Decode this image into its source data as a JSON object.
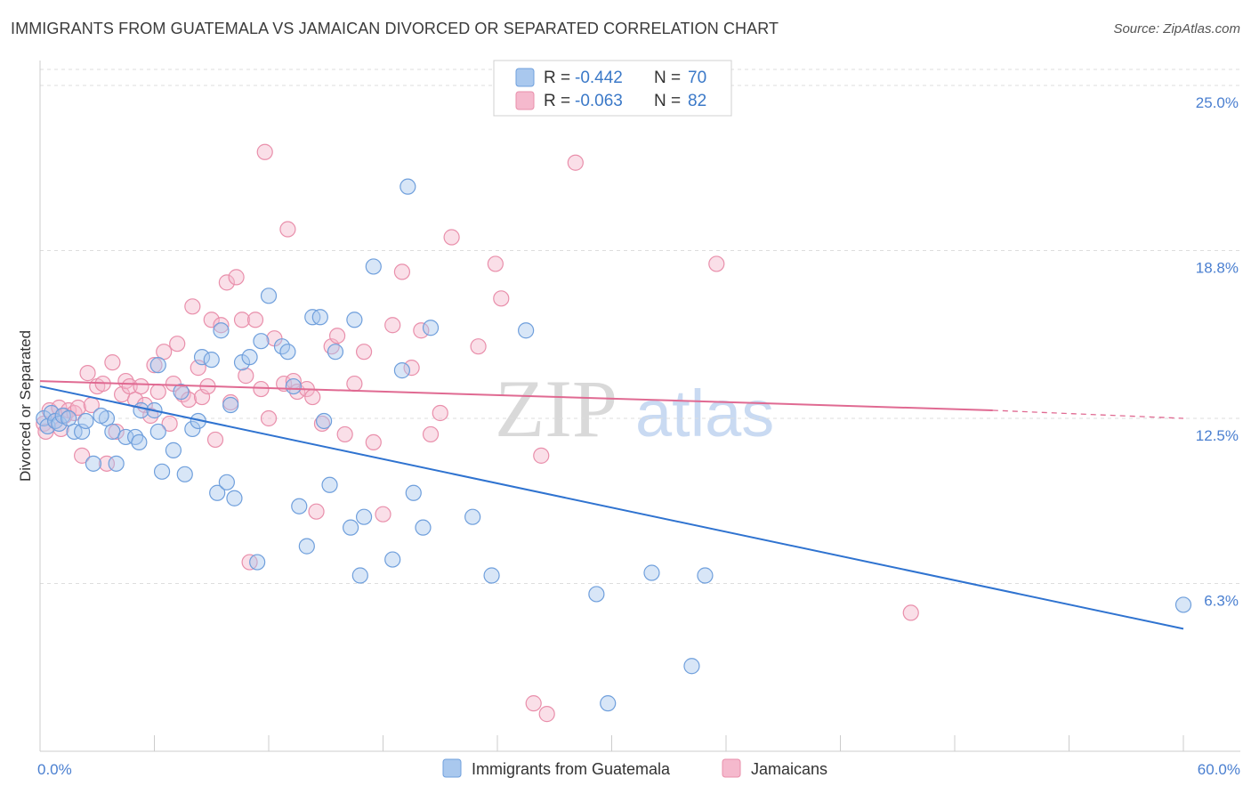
{
  "header": {
    "title": "IMMIGRANTS FROM GUATEMALA VS JAMAICAN DIVORCED OR SEPARATED CORRELATION CHART",
    "source": "Source: ZipAtlas.com"
  },
  "watermark": {
    "zip": "ZIP",
    "atlas": "atlas"
  },
  "stats_legend": {
    "rows": [
      {
        "r_label": "R =",
        "r_value": "-0.442",
        "n_label": "N =",
        "n_value": "70"
      },
      {
        "r_label": "R =",
        "r_value": "-0.063",
        "n_label": "N =",
        "n_value": "82"
      }
    ]
  },
  "chart_data": {
    "type": "scatter",
    "ylabel": "Divorced or Separated",
    "xlabel": "",
    "x_tick_labels": [
      "0.0%",
      "60.0%"
    ],
    "y_tick_labels": [
      "25.0%",
      "18.8%",
      "12.5%",
      "6.3%"
    ],
    "y_tick_values": [
      25.0,
      18.8,
      12.5,
      6.3
    ],
    "xlim": [
      0,
      60
    ],
    "ylim": [
      0,
      25.6
    ],
    "grid": "horizontal dashed",
    "legend_placement": "bottom-center",
    "colors": {
      "blue_fill": "#a9c8ee",
      "blue_stroke": "#6f9fdc",
      "blue_line": "#2f73d0",
      "pink_fill": "#f5b9cd",
      "pink_stroke": "#e98fab",
      "pink_line": "#e06a92"
    },
    "series": [
      {
        "name": "Immigrants from Guatemala",
        "color": "#a9c8ee",
        "trend": {
          "x": [
            0,
            60
          ],
          "y": [
            13.7,
            4.6
          ]
        },
        "points": [
          [
            0.2,
            12.5
          ],
          [
            0.4,
            12.2
          ],
          [
            0.6,
            12.7
          ],
          [
            0.8,
            12.4
          ],
          [
            1.0,
            12.3
          ],
          [
            1.2,
            12.6
          ],
          [
            1.5,
            12.5
          ],
          [
            1.8,
            12.0
          ],
          [
            2.2,
            12.0
          ],
          [
            2.4,
            12.4
          ],
          [
            2.8,
            10.8
          ],
          [
            3.5,
            12.5
          ],
          [
            3.8,
            12.0
          ],
          [
            4.0,
            10.8
          ],
          [
            4.5,
            11.8
          ],
          [
            5.0,
            11.8
          ],
          [
            5.2,
            11.6
          ],
          [
            5.3,
            12.8
          ],
          [
            6.0,
            12.8
          ],
          [
            6.2,
            14.5
          ],
          [
            6.2,
            12.0
          ],
          [
            6.4,
            10.5
          ],
          [
            7.0,
            11.3
          ],
          [
            7.4,
            13.5
          ],
          [
            7.6,
            10.4
          ],
          [
            8.0,
            12.1
          ],
          [
            8.3,
            12.4
          ],
          [
            8.5,
            14.8
          ],
          [
            9.0,
            14.7
          ],
          [
            9.3,
            9.7
          ],
          [
            9.5,
            15.8
          ],
          [
            9.8,
            10.1
          ],
          [
            10.0,
            13.0
          ],
          [
            10.2,
            9.5
          ],
          [
            10.6,
            14.6
          ],
          [
            11.0,
            14.8
          ],
          [
            11.4,
            7.1
          ],
          [
            11.6,
            15.4
          ],
          [
            12.0,
            17.1
          ],
          [
            12.7,
            15.2
          ],
          [
            13.0,
            15.0
          ],
          [
            13.3,
            13.7
          ],
          [
            13.6,
            9.2
          ],
          [
            14.0,
            7.7
          ],
          [
            14.3,
            16.3
          ],
          [
            14.7,
            16.3
          ],
          [
            14.9,
            12.4
          ],
          [
            15.2,
            10.0
          ],
          [
            15.5,
            15.0
          ],
          [
            16.3,
            8.4
          ],
          [
            16.5,
            16.2
          ],
          [
            16.8,
            6.6
          ],
          [
            17.0,
            8.8
          ],
          [
            17.5,
            18.2
          ],
          [
            18.5,
            7.2
          ],
          [
            19.0,
            14.3
          ],
          [
            19.3,
            21.2
          ],
          [
            19.6,
            9.7
          ],
          [
            20.1,
            8.4
          ],
          [
            20.5,
            15.9
          ],
          [
            22.7,
            8.8
          ],
          [
            23.7,
            6.6
          ],
          [
            25.5,
            15.8
          ],
          [
            29.2,
            5.9
          ],
          [
            29.8,
            1.8
          ],
          [
            32.1,
            6.7
          ],
          [
            34.2,
            3.2
          ],
          [
            34.9,
            6.6
          ],
          [
            60.0,
            5.5
          ],
          [
            3.2,
            12.6
          ]
        ]
      },
      {
        "name": "Jamaicans",
        "color": "#f5b9cd",
        "trend": {
          "x": [
            0,
            50
          ],
          "y": [
            13.9,
            12.8
          ]
        },
        "trend_dashed": {
          "x": [
            50,
            60
          ],
          "y": [
            12.8,
            12.5
          ]
        },
        "points": [
          [
            0.2,
            12.3
          ],
          [
            0.5,
            12.8
          ],
          [
            0.8,
            12.4
          ],
          [
            1.0,
            12.9
          ],
          [
            1.3,
            12.6
          ],
          [
            1.5,
            12.8
          ],
          [
            1.8,
            12.7
          ],
          [
            2.0,
            12.9
          ],
          [
            2.2,
            11.1
          ],
          [
            2.5,
            14.2
          ],
          [
            2.7,
            13.0
          ],
          [
            3.0,
            13.7
          ],
          [
            3.3,
            13.8
          ],
          [
            3.5,
            10.8
          ],
          [
            3.8,
            14.6
          ],
          [
            4.0,
            12.0
          ],
          [
            4.3,
            13.4
          ],
          [
            4.5,
            13.9
          ],
          [
            4.7,
            13.7
          ],
          [
            5.0,
            13.2
          ],
          [
            5.3,
            13.7
          ],
          [
            5.5,
            13.0
          ],
          [
            5.8,
            12.6
          ],
          [
            6.0,
            14.5
          ],
          [
            6.2,
            13.5
          ],
          [
            6.5,
            15.0
          ],
          [
            6.8,
            12.3
          ],
          [
            7.0,
            13.8
          ],
          [
            7.2,
            15.3
          ],
          [
            7.5,
            13.4
          ],
          [
            7.8,
            13.2
          ],
          [
            8.0,
            16.7
          ],
          [
            8.3,
            14.4
          ],
          [
            8.5,
            13.3
          ],
          [
            8.8,
            13.7
          ],
          [
            9.0,
            16.2
          ],
          [
            9.2,
            11.7
          ],
          [
            9.5,
            16.0
          ],
          [
            9.8,
            17.6
          ],
          [
            10.0,
            13.1
          ],
          [
            10.3,
            17.8
          ],
          [
            10.6,
            16.2
          ],
          [
            10.8,
            14.1
          ],
          [
            11.0,
            7.1
          ],
          [
            11.3,
            16.2
          ],
          [
            11.6,
            13.6
          ],
          [
            11.8,
            22.5
          ],
          [
            12.0,
            12.5
          ],
          [
            12.3,
            15.5
          ],
          [
            12.8,
            13.8
          ],
          [
            13.0,
            19.6
          ],
          [
            13.3,
            13.9
          ],
          [
            13.5,
            13.5
          ],
          [
            14.0,
            13.6
          ],
          [
            14.3,
            13.3
          ],
          [
            14.5,
            9.0
          ],
          [
            14.8,
            12.3
          ],
          [
            15.3,
            15.2
          ],
          [
            15.6,
            15.6
          ],
          [
            16.0,
            11.9
          ],
          [
            16.5,
            13.8
          ],
          [
            17.0,
            15.0
          ],
          [
            17.5,
            11.6
          ],
          [
            18.0,
            8.9
          ],
          [
            18.5,
            16.0
          ],
          [
            19.0,
            18.0
          ],
          [
            19.5,
            14.4
          ],
          [
            20.0,
            15.8
          ],
          [
            20.5,
            11.9
          ],
          [
            21.0,
            12.7
          ],
          [
            21.6,
            19.3
          ],
          [
            23.0,
            15.2
          ],
          [
            23.9,
            18.3
          ],
          [
            24.2,
            17.0
          ],
          [
            25.9,
            1.8
          ],
          [
            26.3,
            11.1
          ],
          [
            26.6,
            1.4
          ],
          [
            28.1,
            22.1
          ],
          [
            35.5,
            18.3
          ],
          [
            45.7,
            5.2
          ],
          [
            0.3,
            12.0
          ],
          [
            1.1,
            12.1
          ]
        ]
      }
    ]
  }
}
